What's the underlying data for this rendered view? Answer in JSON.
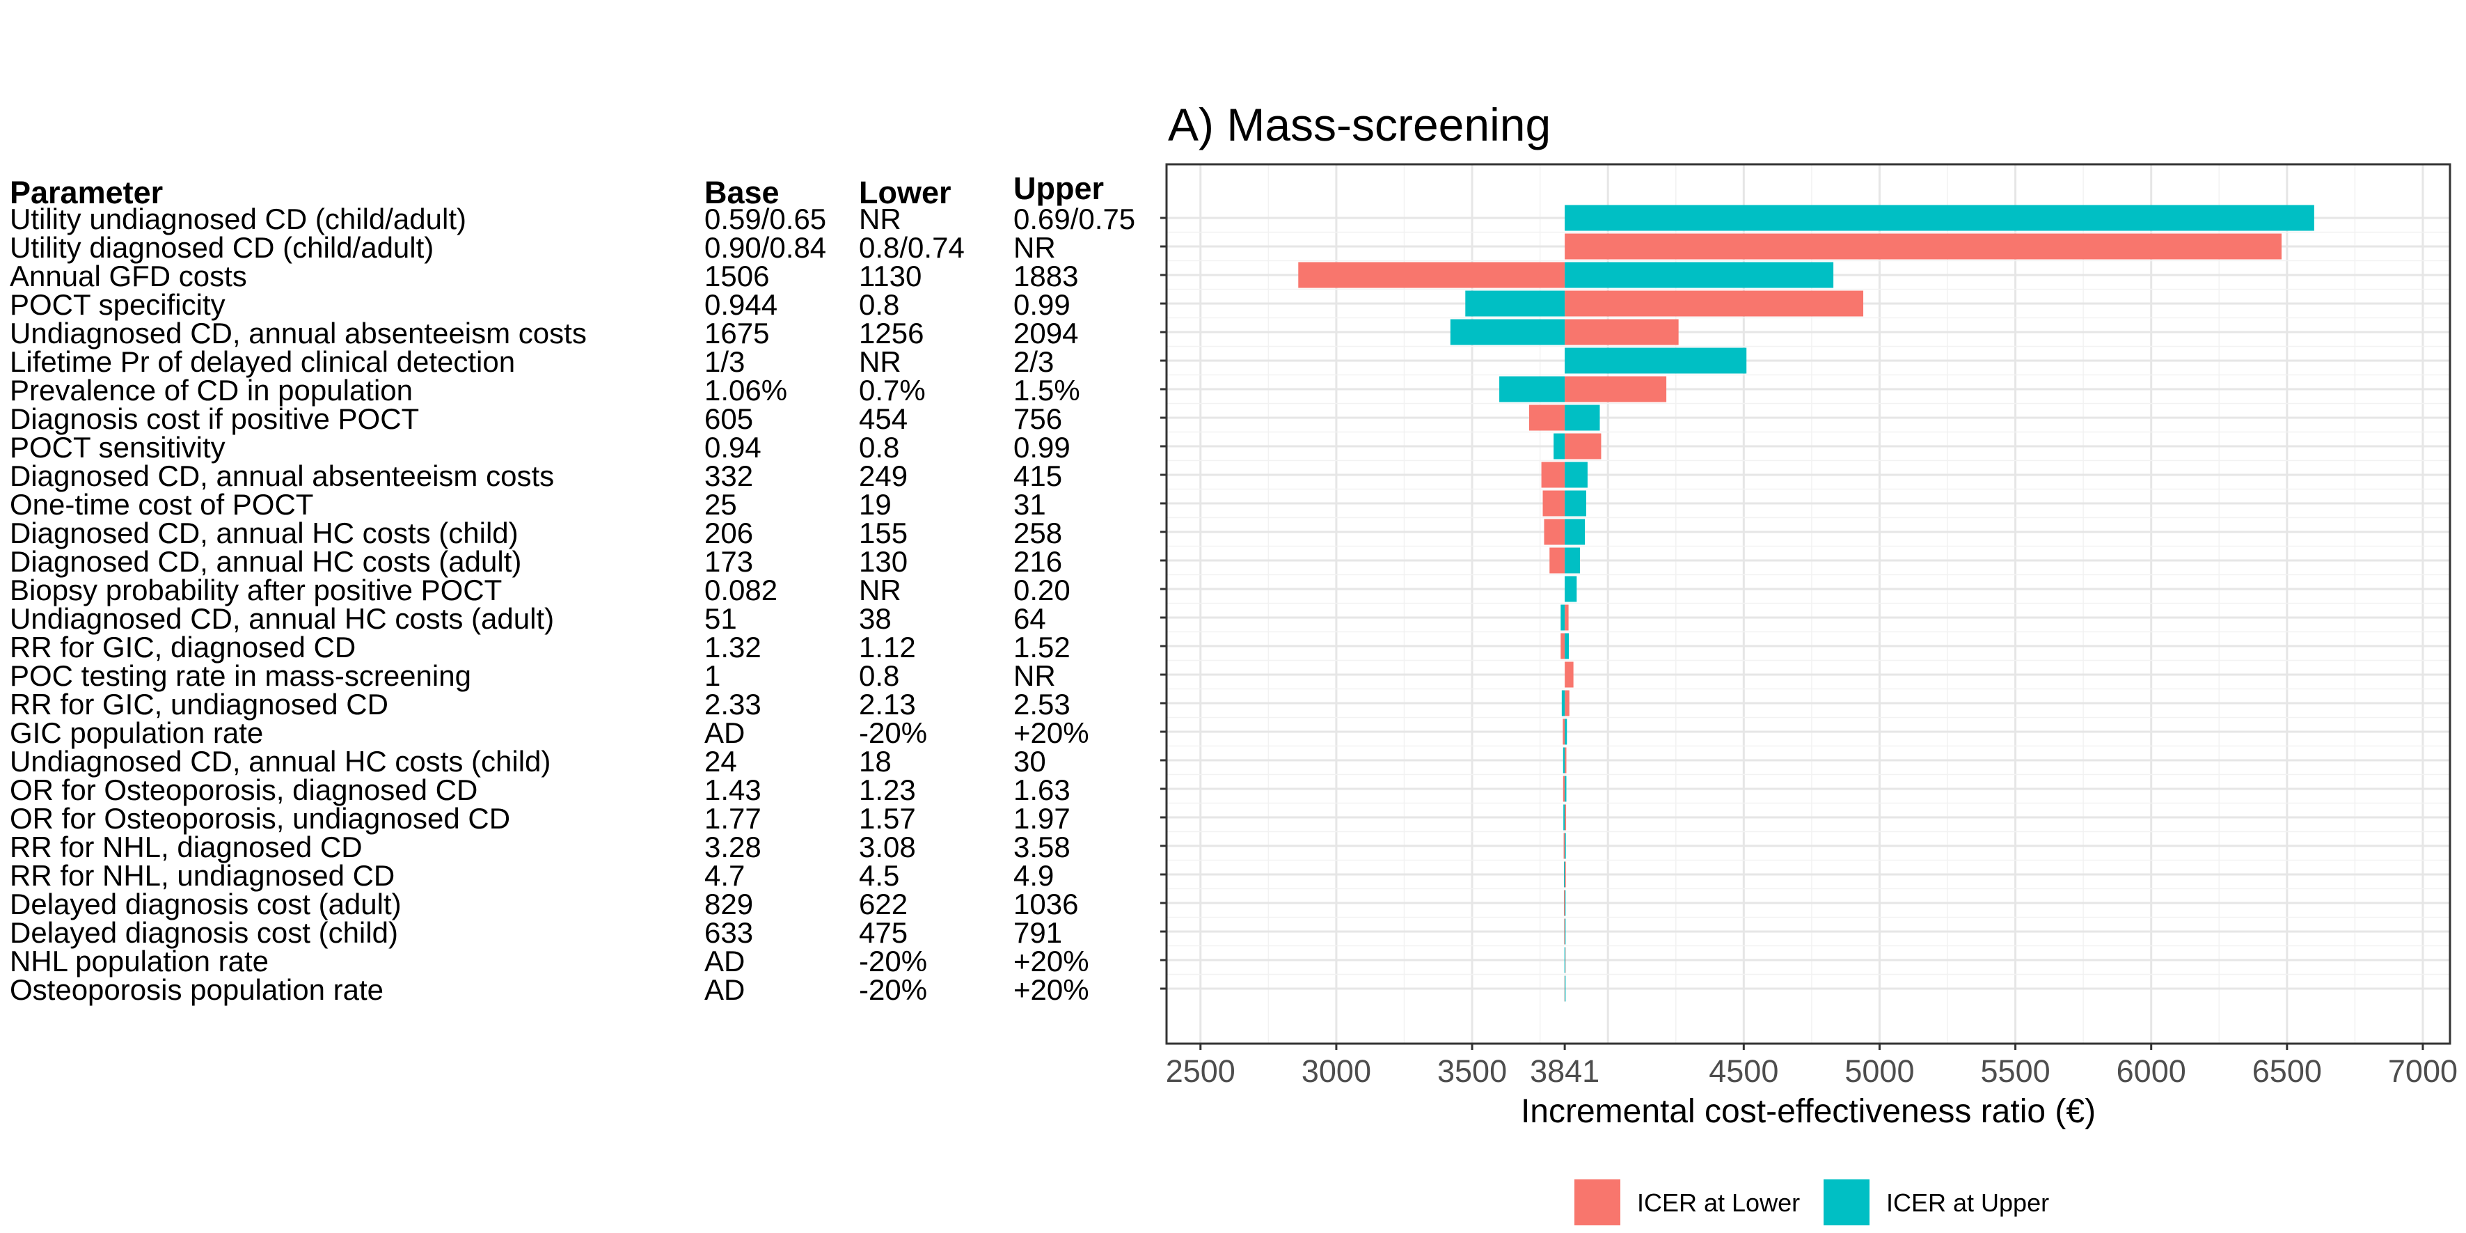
{
  "chart_data": {
    "type": "bar",
    "subtype": "tornado",
    "title": "A) Mass-screening",
    "xlabel": "Incremental cost-effectiveness ratio (€)",
    "ylabel": "",
    "base_value": 3841,
    "xlim": [
      2375,
      7100
    ],
    "x_ticks": [
      2500,
      3000,
      3500,
      3841,
      4500,
      5000,
      5500,
      6000,
      6500,
      7000
    ],
    "x_tick_labels": [
      "2500",
      "3000",
      "3500",
      "3841",
      "4500",
      "5000",
      "5500",
      "6000",
      "6500",
      "7000"
    ],
    "grid": true,
    "legend_position": "bottom",
    "series": [
      {
        "name": "ICER at Lower",
        "color": "#F8766D"
      },
      {
        "name": "ICER at Upper",
        "color": "#00BFC4"
      }
    ],
    "table_headers": {
      "parameter": "Parameter",
      "base": "Base",
      "lower": "Lower",
      "upper": "Upper"
    },
    "rows": [
      {
        "parameter": "Utility undiagnosed CD (child/adult)",
        "base": "0.59/0.65",
        "lower": "NR",
        "upper": "0.69/0.75",
        "icer_lower": null,
        "icer_upper": 6600
      },
      {
        "parameter": "Utility diagnosed CD (child/adult)",
        "base": "0.90/0.84",
        "lower": "0.8/0.74",
        "upper": "NR",
        "icer_lower": 6480,
        "icer_upper": null
      },
      {
        "parameter": "Annual GFD costs",
        "base": "1506",
        "lower": "1130",
        "upper": "1883",
        "icer_lower": 2860,
        "icer_upper": 4830
      },
      {
        "parameter": "POCT specificity",
        "base": "0.944",
        "lower": "0.8",
        "upper": "0.99",
        "icer_lower": 4940,
        "icer_upper": 3475
      },
      {
        "parameter": "Undiagnosed CD, annual absenteeism costs",
        "base": "1675",
        "lower": "1256",
        "upper": "2094",
        "icer_lower": 4260,
        "icer_upper": 3420
      },
      {
        "parameter": "Lifetime Pr of delayed clinical detection",
        "base": "1/3",
        "lower": "NR",
        "upper": "2/3",
        "icer_lower": null,
        "icer_upper": 4510
      },
      {
        "parameter": "Prevalence of CD in population",
        "base": "1.06%",
        "lower": "0.7%",
        "upper": "1.5%",
        "icer_lower": 4215,
        "icer_upper": 3600
      },
      {
        "parameter": "Diagnosis cost if positive POCT",
        "base": "605",
        "lower": "454",
        "upper": "756",
        "icer_lower": 3710,
        "icer_upper": 3970
      },
      {
        "parameter": "POCT sensitivity",
        "base": "0.94",
        "lower": "0.8",
        "upper": "0.99",
        "icer_lower": 3975,
        "icer_upper": 3800
      },
      {
        "parameter": "Diagnosed CD, annual absenteeism costs",
        "base": "332",
        "lower": "249",
        "upper": "415",
        "icer_lower": 3755,
        "icer_upper": 3925
      },
      {
        "parameter": "One-time cost of POCT",
        "base": "25",
        "lower": "19",
        "upper": "31",
        "icer_lower": 3760,
        "icer_upper": 3920
      },
      {
        "parameter": "Diagnosed CD, annual HC costs (child)",
        "base": "206",
        "lower": "155",
        "upper": "258",
        "icer_lower": 3765,
        "icer_upper": 3915
      },
      {
        "parameter": "Diagnosed CD, annual HC costs (adult)",
        "base": "173",
        "lower": "130",
        "upper": "216",
        "icer_lower": 3785,
        "icer_upper": 3897
      },
      {
        "parameter": "Biopsy probability after positive POCT",
        "base": "0.082",
        "lower": "NR",
        "upper": "0.20",
        "icer_lower": null,
        "icer_upper": 3885
      },
      {
        "parameter": "Undiagnosed CD, annual HC costs (adult)",
        "base": "51",
        "lower": "38",
        "upper": "64",
        "icer_lower": 3855,
        "icer_upper": 3826
      },
      {
        "parameter": "RR for GIC, diagnosed CD",
        "base": "1.32",
        "lower": "1.12",
        "upper": "1.52",
        "icer_lower": 3826,
        "icer_upper": 3856
      },
      {
        "parameter": "POC testing rate in mass-screening",
        "base": "1",
        "lower": "0.8",
        "upper": "NR",
        "icer_lower": 3873,
        "icer_upper": null
      },
      {
        "parameter": "RR for GIC, undiagnosed CD",
        "base": "2.33",
        "lower": "2.13",
        "upper": "2.53",
        "icer_lower": 3858,
        "icer_upper": 3830
      },
      {
        "parameter": "GIC population rate",
        "base": "AD",
        "lower": "-20%",
        "upper": "+20%",
        "icer_lower": 3834,
        "icer_upper": 3849
      },
      {
        "parameter": "Undiagnosed CD, annual HC costs (child)",
        "base": "24",
        "lower": "18",
        "upper": "30",
        "icer_lower": 3847,
        "icer_upper": 3835
      },
      {
        "parameter": "OR for Osteoporosis, diagnosed CD",
        "base": "1.43",
        "lower": "1.23",
        "upper": "1.63",
        "icer_lower": 3835,
        "icer_upper": 3847
      },
      {
        "parameter": "OR for  Osteoporosis, undiagnosed CD",
        "base": "1.77",
        "lower": "1.57",
        "upper": "1.97",
        "icer_lower": 3846,
        "icer_upper": 3836
      },
      {
        "parameter": "RR for NHL, diagnosed CD",
        "base": "3.28",
        "lower": "3.08",
        "upper": "3.58",
        "icer_lower": 3837,
        "icer_upper": 3845
      },
      {
        "parameter": "RR for NHL, undiagnosed CD",
        "base": "4.7",
        "lower": "4.5",
        "upper": "4.9",
        "icer_lower": 3845,
        "icer_upper": 3838
      },
      {
        "parameter": "Delayed diagnosis cost (adult)",
        "base": "829",
        "lower": "622",
        "upper": "1036",
        "icer_lower": 3838,
        "icer_upper": 3844
      },
      {
        "parameter": "Delayed diagnosis cost (child)",
        "base": "633",
        "lower": "475",
        "upper": "791",
        "icer_lower": 3839,
        "icer_upper": 3843
      },
      {
        "parameter": "NHL population rate",
        "base": "AD",
        "lower": "-20%",
        "upper": "+20%",
        "icer_lower": 3842,
        "icer_upper": 3840
      },
      {
        "parameter": "Osteoporosis population rate",
        "base": "AD",
        "lower": "-20%",
        "upper": "+20%",
        "icer_lower": 3840,
        "icer_upper": 3842
      }
    ]
  }
}
